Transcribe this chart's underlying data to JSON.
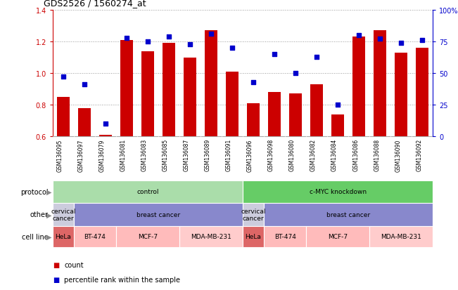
{
  "title": "GDS2526 / 1560274_at",
  "samples": [
    "GSM136095",
    "GSM136097",
    "GSM136079",
    "GSM136081",
    "GSM136083",
    "GSM136085",
    "GSM136087",
    "GSM136089",
    "GSM136091",
    "GSM136096",
    "GSM136098",
    "GSM136080",
    "GSM136082",
    "GSM136084",
    "GSM136086",
    "GSM136088",
    "GSM136090",
    "GSM136092"
  ],
  "bar_values": [
    0.85,
    0.78,
    0.61,
    1.21,
    1.14,
    1.19,
    1.1,
    1.27,
    1.01,
    0.81,
    0.88,
    0.87,
    0.93,
    0.74,
    1.23,
    1.27,
    1.13,
    1.16
  ],
  "dot_values": [
    47,
    41,
    10,
    78,
    75,
    79,
    73,
    81,
    70,
    43,
    65,
    50,
    63,
    25,
    80,
    77,
    74,
    76
  ],
  "ylim_left": [
    0.6,
    1.4
  ],
  "ylim_right": [
    0,
    100
  ],
  "yticks_left": [
    0.6,
    0.8,
    1.0,
    1.2,
    1.4
  ],
  "yticks_right": [
    0,
    25,
    50,
    75,
    100
  ],
  "ytick_labels_right": [
    "0",
    "25",
    "50",
    "75",
    "100%"
  ],
  "bar_color": "#cc0000",
  "dot_color": "#0000cc",
  "grid_color": "#999999",
  "protocol_row": {
    "label": "protocol",
    "groups": [
      {
        "text": "control",
        "start": 0,
        "end": 9,
        "color": "#aaddaa"
      },
      {
        "text": "c-MYC knockdown",
        "start": 9,
        "end": 18,
        "color": "#66cc66"
      }
    ]
  },
  "other_row": {
    "label": "other",
    "groups": [
      {
        "text": "cervical\ncancer",
        "start": 0,
        "end": 1,
        "color": "#ccccdd"
      },
      {
        "text": "breast cancer",
        "start": 1,
        "end": 9,
        "color": "#8888cc"
      },
      {
        "text": "cervical\ncancer",
        "start": 9,
        "end": 10,
        "color": "#ccccdd"
      },
      {
        "text": "breast cancer",
        "start": 10,
        "end": 18,
        "color": "#8888cc"
      }
    ]
  },
  "cellline_row": {
    "label": "cell line",
    "groups": [
      {
        "text": "HeLa",
        "start": 0,
        "end": 1,
        "color": "#dd6666"
      },
      {
        "text": "BT-474",
        "start": 1,
        "end": 3,
        "color": "#ffbbbb"
      },
      {
        "text": "MCF-7",
        "start": 3,
        "end": 6,
        "color": "#ffbbbb"
      },
      {
        "text": "MDA-MB-231",
        "start": 6,
        "end": 9,
        "color": "#ffcccc"
      },
      {
        "text": "HeLa",
        "start": 9,
        "end": 10,
        "color": "#dd6666"
      },
      {
        "text": "BT-474",
        "start": 10,
        "end": 12,
        "color": "#ffbbbb"
      },
      {
        "text": "MCF-7",
        "start": 12,
        "end": 15,
        "color": "#ffbbbb"
      },
      {
        "text": "MDA-MB-231",
        "start": 15,
        "end": 18,
        "color": "#ffcccc"
      }
    ]
  },
  "legend_items": [
    {
      "color": "#cc0000",
      "label": "count"
    },
    {
      "color": "#0000cc",
      "label": "percentile rank within the sample"
    }
  ],
  "label_color": "#888888",
  "arrow_color": "#888888"
}
